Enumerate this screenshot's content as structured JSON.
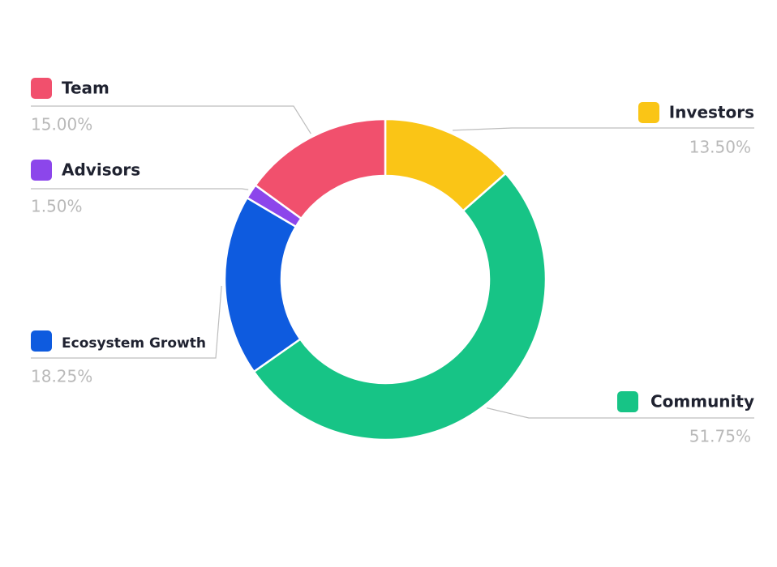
{
  "chart_data": {
    "type": "pie",
    "variant": "donut",
    "title": "",
    "slices": [
      {
        "label": "Investors",
        "value": 13.5,
        "display": "13.50%",
        "color": "#fac516"
      },
      {
        "label": "Community",
        "value": 51.75,
        "display": "51.75%",
        "color": "#17c486"
      },
      {
        "label": "Ecosystem Growth",
        "value": 18.25,
        "display": "18.25%",
        "color": "#0e5bdf"
      },
      {
        "label": "Advisors",
        "value": 1.5,
        "display": "1.50%",
        "color": "#8c46eb"
      },
      {
        "label": "Team",
        "value": 15.0,
        "display": "15.00%",
        "color": "#f1506d"
      }
    ],
    "legend": "callouts"
  }
}
